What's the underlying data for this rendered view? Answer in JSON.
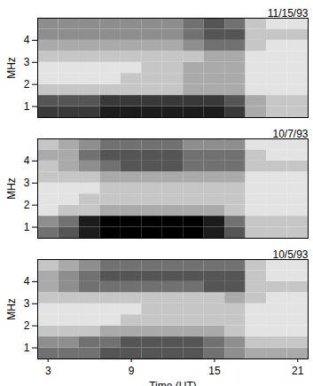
{
  "chart_data": [
    {
      "type": "heatmap",
      "title": "11/15/93",
      "y_label": "MHz",
      "tick_labels": "y",
      "xlim": [
        2.25,
        21.75
      ],
      "ylim": [
        0.5,
        5.0
      ],
      "xticks": [
        3,
        9,
        15,
        21
      ],
      "yticks": [
        1,
        2,
        3,
        4
      ],
      "x_bins": [
        2.25,
        3.75,
        5.25,
        6.75,
        8.25,
        9.75,
        11.25,
        12.75,
        14.25,
        15.75,
        17.25,
        18.75,
        20.25,
        21.75
      ],
      "y_bins": [
        0.5,
        1.0,
        1.5,
        2.0,
        2.5,
        3.0,
        3.5,
        4.0,
        4.5,
        5.0
      ],
      "zlim": [
        0,
        9
      ],
      "cells": [
        [
          7,
          7,
          7,
          8,
          8,
          8,
          8,
          8,
          8,
          7,
          3,
          2,
          2
        ],
        [
          6,
          6,
          6,
          7,
          7,
          7,
          7,
          7,
          7,
          6,
          3,
          2,
          2
        ],
        [
          2,
          2,
          2,
          2,
          2,
          2,
          2,
          3,
          3,
          3,
          1,
          1,
          1
        ],
        [
          1,
          1,
          1,
          1,
          2,
          2,
          2,
          3,
          3,
          3,
          1,
          1,
          1
        ],
        [
          1,
          1,
          1,
          1,
          1,
          2,
          2,
          3,
          3,
          3,
          1,
          1,
          1
        ],
        [
          2,
          2,
          2,
          2,
          2,
          2,
          2,
          2,
          3,
          3,
          1,
          1,
          1
        ],
        [
          3,
          3,
          3,
          3,
          3,
          3,
          3,
          4,
          5,
          5,
          2,
          1,
          1
        ],
        [
          4,
          4,
          4,
          4,
          4,
          4,
          4,
          5,
          6,
          6,
          2,
          2,
          2
        ],
        [
          4,
          4,
          4,
          4,
          4,
          4,
          4,
          5,
          6,
          5,
          2,
          1,
          1
        ]
      ]
    },
    {
      "type": "heatmap",
      "title": "10/7/93",
      "y_label": "MHz",
      "tick_labels": "y",
      "xlim": [
        2.25,
        21.75
      ],
      "ylim": [
        0.5,
        5.0
      ],
      "xticks": [
        3,
        9,
        15,
        21
      ],
      "yticks": [
        1,
        2,
        3,
        4
      ],
      "x_bins": [
        2.25,
        3.75,
        5.25,
        6.75,
        8.25,
        9.75,
        11.25,
        12.75,
        14.25,
        15.75,
        17.25,
        18.75,
        20.25,
        21.75
      ],
      "y_bins": [
        0.5,
        1.0,
        1.5,
        2.0,
        2.5,
        3.0,
        3.5,
        4.0,
        4.5,
        5.0
      ],
      "zlim": [
        0,
        9
      ],
      "cells": [
        [
          5,
          6,
          8,
          9,
          9,
          9,
          9,
          9,
          8,
          6,
          2,
          2,
          2
        ],
        [
          4,
          5,
          8,
          9,
          9,
          9,
          9,
          9,
          8,
          5,
          2,
          2,
          2
        ],
        [
          1,
          2,
          2,
          3,
          3,
          3,
          3,
          3,
          3,
          2,
          1,
          1,
          1
        ],
        [
          1,
          1,
          2,
          2,
          2,
          2,
          2,
          2,
          2,
          2,
          1,
          1,
          1
        ],
        [
          1,
          1,
          1,
          2,
          2,
          2,
          2,
          2,
          2,
          2,
          1,
          1,
          1
        ],
        [
          2,
          2,
          2,
          3,
          3,
          3,
          3,
          3,
          3,
          3,
          1,
          1,
          1
        ],
        [
          2,
          3,
          4,
          5,
          6,
          6,
          6,
          5,
          5,
          5,
          2,
          2,
          2
        ],
        [
          3,
          3,
          5,
          6,
          6,
          6,
          6,
          5,
          5,
          5,
          2,
          1,
          1
        ],
        [
          2,
          3,
          4,
          5,
          5,
          5,
          5,
          4,
          4,
          4,
          1,
          1,
          1
        ]
      ]
    },
    {
      "type": "heatmap",
      "title": "10/5/93",
      "y_label": "MHz",
      "x_label": "Time (UT)",
      "xlim": [
        2.25,
        21.75
      ],
      "ylim": [
        0.5,
        5.0
      ],
      "xticks": [
        3,
        9,
        15,
        21
      ],
      "yticks": [
        1,
        2,
        3,
        4
      ],
      "x_bins": [
        2.25,
        3.75,
        5.25,
        6.75,
        8.25,
        9.75,
        11.25,
        12.75,
        14.25,
        15.75,
        17.25,
        18.75,
        20.25,
        21.75
      ],
      "y_bins": [
        0.5,
        1.0,
        1.5,
        2.0,
        2.5,
        3.0,
        3.5,
        4.0,
        4.5,
        5.0
      ],
      "zlim": [
        0,
        9
      ],
      "cells": [
        [
          5,
          5,
          5,
          6,
          6,
          6,
          6,
          6,
          5,
          4,
          3,
          3,
          3
        ],
        [
          4,
          4,
          5,
          5,
          6,
          6,
          6,
          6,
          5,
          4,
          2,
          2,
          2
        ],
        [
          2,
          2,
          2,
          3,
          3,
          3,
          3,
          3,
          3,
          2,
          1,
          1,
          1
        ],
        [
          1,
          1,
          1,
          1,
          2,
          2,
          2,
          2,
          2,
          2,
          1,
          1,
          1
        ],
        [
          1,
          1,
          1,
          1,
          1,
          2,
          2,
          2,
          2,
          2,
          1,
          1,
          1
        ],
        [
          2,
          2,
          2,
          2,
          2,
          2,
          2,
          2,
          2,
          3,
          2,
          1,
          1
        ],
        [
          3,
          4,
          5,
          5,
          5,
          5,
          5,
          5,
          6,
          6,
          2,
          2,
          2
        ],
        [
          3,
          4,
          5,
          6,
          6,
          6,
          6,
          6,
          6,
          6,
          2,
          1,
          1
        ],
        [
          2,
          3,
          4,
          5,
          5,
          5,
          5,
          5,
          5,
          5,
          2,
          1,
          1
        ]
      ]
    }
  ]
}
